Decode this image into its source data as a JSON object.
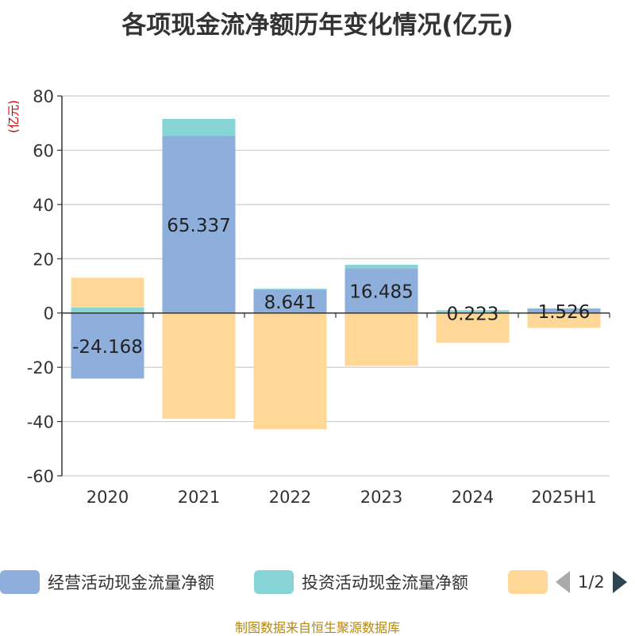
{
  "title": "各项现金流净额历年变化情况(亿元)",
  "unit_label": "(亿元)",
  "source": "制图数据来自恒生聚源数据库",
  "legend": {
    "items": [
      {
        "label": "经营活动现金流量净额",
        "color": "#8eaedb"
      },
      {
        "label": "投资活动现金流量净额",
        "color": "#86d4d6"
      },
      {
        "label": "",
        "color": "#ffd898"
      }
    ],
    "pager": "1/2"
  },
  "chart_data": {
    "type": "bar",
    "stacked": true,
    "categories": [
      "2020",
      "2021",
      "2022",
      "2023",
      "2024",
      "2025H1"
    ],
    "series": [
      {
        "name": "经营活动现金流量净额",
        "color": "#8eaedb",
        "values": [
          -24.168,
          65.337,
          8.641,
          16.485,
          0.223,
          1.526
        ]
      },
      {
        "name": "投资活动现金流量净额",
        "color": "#86d4d6",
        "values": [
          2.0,
          6.2,
          0.3,
          1.3,
          0.8,
          0.2
        ]
      },
      {
        "name": "",
        "color": "#ffd898",
        "values": [
          11.0,
          -39.0,
          -42.8,
          -19.5,
          -11.0,
          -5.5
        ]
      }
    ],
    "data_labels": [
      "-24.168",
      "65.337",
      "8.641",
      "16.485",
      "0.223",
      "1.526"
    ],
    "yticks": [
      -60,
      -40,
      -20,
      0,
      20,
      40,
      60,
      80
    ],
    "ylim": [
      -60,
      80
    ],
    "grid": true
  }
}
